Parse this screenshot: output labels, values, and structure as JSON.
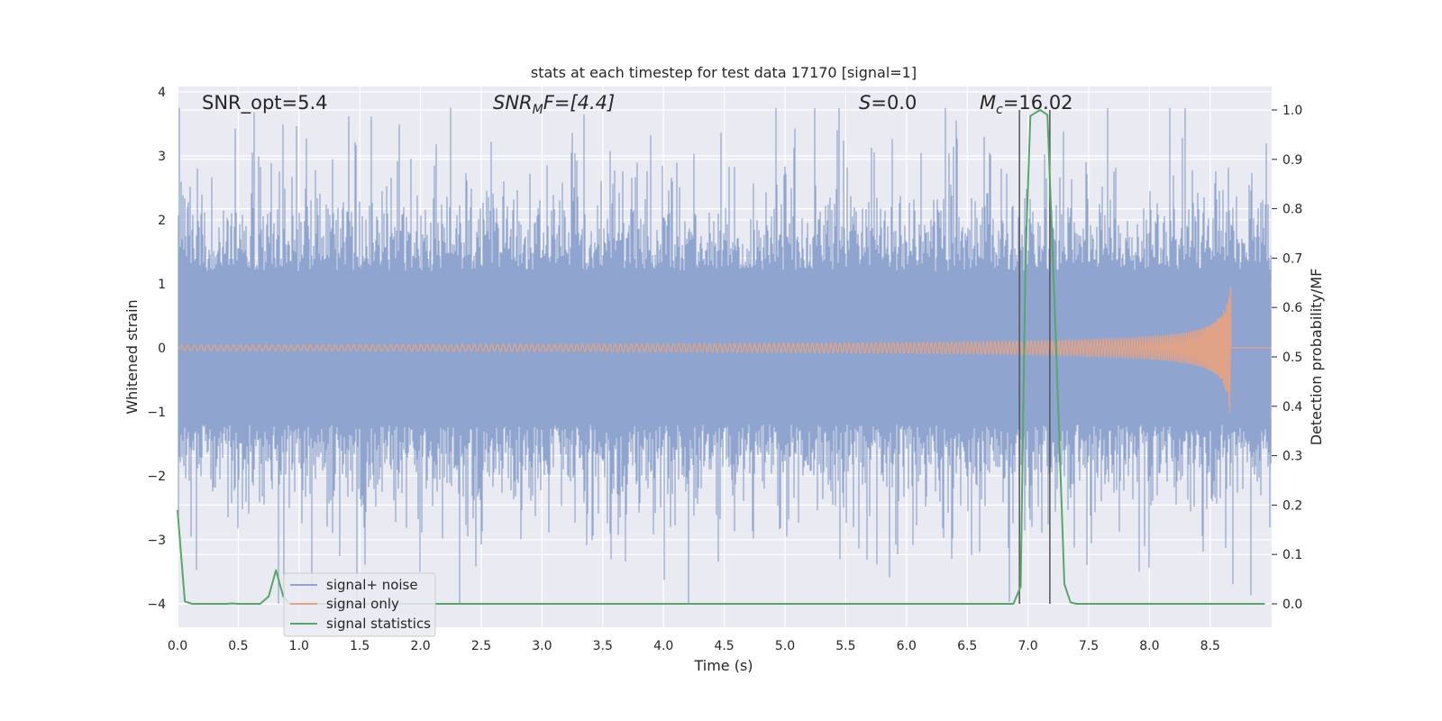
{
  "chart_data": {
    "type": "line",
    "title": "stats at each timestep for test data 17170 [signal=1]",
    "xlabel": "Time (s)",
    "ylabel_left": "Whitened strain",
    "ylabel_right": "Detection probability/MF",
    "xlim": [
      0.0,
      9.0
    ],
    "ylim_left": [
      -4.45,
      4.1
    ],
    "ylim_right": [
      -0.045,
      1.045
    ],
    "xticks": [
      "0.0",
      "0.5",
      "1.0",
      "1.5",
      "2.0",
      "2.5",
      "3.0",
      "3.5",
      "4.0",
      "4.5",
      "5.0",
      "5.5",
      "6.0",
      "6.5",
      "7.0",
      "7.5",
      "8.0",
      "8.5"
    ],
    "yticks_left": [
      "4",
      "3",
      "2",
      "1",
      "0",
      "−1",
      "−2",
      "−3",
      "−4"
    ],
    "yticks_right": [
      "1.0",
      "0.9",
      "0.8",
      "0.7",
      "0.6",
      "0.5",
      "0.4",
      "0.3",
      "0.2",
      "0.1",
      "0.0"
    ],
    "grid": true,
    "legend_placement": "lower-left",
    "annotations": {
      "snr_opt": "SNR_opt=5.4",
      "snr_mf_main": "SNR",
      "snr_mf_sub": "M",
      "snr_mf_rest": "F=[4.4]",
      "s_main": "S",
      "s_rest": "=0.0",
      "mc_main": "M",
      "mc_sub": "c",
      "mc_rest": "=16.02"
    },
    "vlines": [
      6.93,
      7.18
    ],
    "series": [
      {
        "name": "signal+ noise",
        "color": "#8fa4ce",
        "description_kind": "noise-band",
        "typical_range": [
          -1.5,
          1.5
        ],
        "peak_range": [
          -4.0,
          3.75
        ]
      },
      {
        "name": "signal only",
        "color": "#e1a387",
        "description_kind": "chirp",
        "x_end": 8.67,
        "peak_amplitude": 1.25
      },
      {
        "name": "signal statistics",
        "color": "#55a868",
        "x": [
          0.0,
          0.06,
          0.12,
          0.2,
          0.3,
          0.4,
          0.45,
          0.5,
          0.6,
          0.68,
          0.75,
          0.81,
          0.87,
          0.92,
          1.0,
          2.0,
          3.0,
          4.0,
          5.0,
          6.0,
          6.88,
          6.94,
          6.98,
          7.02,
          7.1,
          7.16,
          7.22,
          7.3,
          7.35,
          7.4,
          8.0,
          8.95
        ],
        "values": [
          0.19,
          0.005,
          0.0,
          0.0,
          0.0,
          0.0,
          0.001,
          0.0,
          0.0,
          0.0,
          0.015,
          0.068,
          0.015,
          0.0,
          0.0,
          0.0,
          0.0,
          0.0,
          0.0,
          0.0,
          0.0,
          0.035,
          0.7,
          0.988,
          1.0,
          0.99,
          0.6,
          0.04,
          0.003,
          0.0,
          0.0,
          0.0
        ]
      }
    ]
  }
}
